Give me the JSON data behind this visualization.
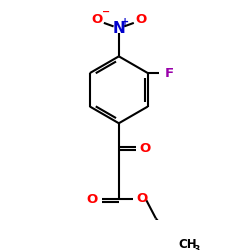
{
  "bg_color": "#ffffff",
  "bond_color": "#000000",
  "bond_lw": 1.5,
  "atom_colors": {
    "O": "#ff0000",
    "N": "#0000cd",
    "F": "#9900aa",
    "C": "#000000"
  },
  "font_size_atom": 9.5,
  "font_size_sub": 6.5,
  "font_size_charge": 7
}
